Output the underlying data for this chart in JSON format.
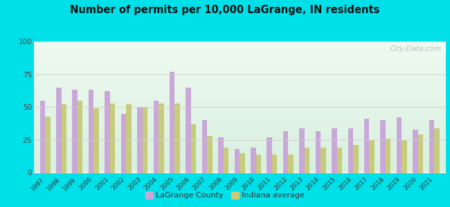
{
  "title": "Number of permits per 10,000 LaGrange, IN residents",
  "years": [
    1997,
    1998,
    1999,
    2000,
    2001,
    2002,
    2003,
    2004,
    2005,
    2006,
    2007,
    2008,
    2009,
    2010,
    2011,
    2012,
    2013,
    2014,
    2015,
    2016,
    2017,
    2018,
    2019,
    2020,
    2021
  ],
  "lagrange": [
    55,
    65,
    63,
    63,
    62,
    45,
    50,
    55,
    77,
    65,
    40,
    27,
    18,
    19,
    27,
    32,
    34,
    32,
    34,
    34,
    41,
    40,
    42,
    33,
    40
  ],
  "indiana": [
    43,
    52,
    55,
    49,
    53,
    52,
    50,
    53,
    53,
    37,
    28,
    19,
    15,
    14,
    14,
    14,
    19,
    19,
    19,
    21,
    25,
    26,
    25,
    29,
    34
  ],
  "lagrange_color": "#c9a8d9",
  "indiana_color": "#c8cc7a",
  "bg_top": "#d8f0e0",
  "bg_bottom": "#f0faf0",
  "outer_background": "#00e0e8",
  "ylim": [
    0,
    100
  ],
  "yticks": [
    0,
    25,
    50,
    75,
    100
  ],
  "legend_lagrange": "LaGrange County",
  "legend_indiana": "Indiana average",
  "watermark": "City-Data.com"
}
